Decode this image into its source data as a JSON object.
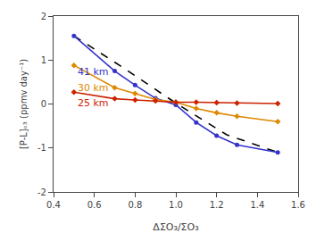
{
  "chart_data": {
    "type": "line",
    "xlabel": "ΔΣO₃/ΣO₃",
    "ylabel": "[P-L]ₒ₃ (ppmv day⁻¹)",
    "xlim": [
      0.4,
      1.6
    ],
    "ylim": [
      -2,
      2
    ],
    "xticks": [
      0.4,
      0.6,
      0.8,
      {
        "value": 1.0,
        "label": "1.0"
      },
      1.2,
      1.4,
      1.6
    ],
    "yticks": [
      -2,
      -1,
      0,
      1,
      2
    ],
    "grid": false,
    "series": [
      {
        "x": [
          0.5,
          0.75,
          1.0,
          1.25,
          1.5
        ],
        "values": [
          1.55,
          0.8,
          0.02,
          -0.7,
          -1.1
        ],
        "color": "#000000",
        "line_style": "dashed"
      },
      {
        "x": [
          0.5,
          0.7,
          0.8,
          0.9,
          1.0,
          1.1,
          1.2,
          1.3,
          1.5
        ],
        "values": [
          1.55,
          0.75,
          0.43,
          0.13,
          -0.02,
          -0.42,
          -0.72,
          -0.93,
          -1.1
        ],
        "color": "#3333cc",
        "line_style": "solid",
        "marker": "circle"
      },
      {
        "x": [
          0.5,
          0.7,
          0.8,
          0.9,
          1.0,
          1.1,
          1.2,
          1.3,
          1.5
        ],
        "values": [
          0.88,
          0.37,
          0.24,
          0.1,
          0.04,
          -0.1,
          -0.2,
          -0.28,
          -0.4
        ],
        "color": "#dd8800",
        "line_style": "solid",
        "marker": "diamond"
      },
      {
        "x": [
          0.5,
          0.7,
          0.8,
          0.9,
          1.0,
          1.1,
          1.2,
          1.3,
          1.5
        ],
        "values": [
          0.27,
          0.12,
          0.09,
          0.07,
          0.04,
          0.04,
          0.03,
          0.02,
          0.01
        ],
        "color": "#cc2200",
        "line_style": "solid",
        "marker": "diamond"
      }
    ],
    "annotations": [
      {
        "text": "41 km",
        "x": 0.51,
        "y": 0.55,
        "color": "#3333cc"
      },
      {
        "text": "30 km",
        "x": 0.51,
        "y": 0.2,
        "color": "#dd8800"
      },
      {
        "text": "25 km",
        "x": 0.51,
        "y": -0.15,
        "color": "#cc2200"
      }
    ]
  }
}
